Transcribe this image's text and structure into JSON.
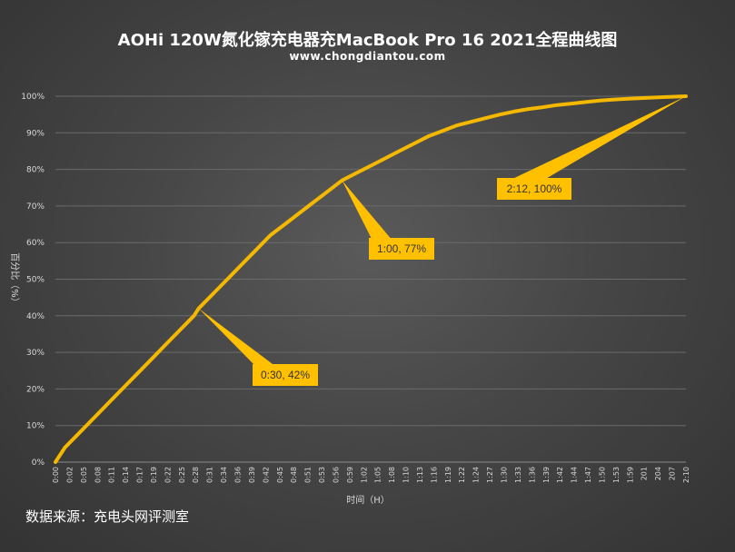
{
  "header": {
    "title": "AOHi 120W氮化镓充电器充MacBook Pro 16 2021全程曲线图",
    "subtitle": "www.chongdiantou.com"
  },
  "footer": {
    "source": "数据来源：充电头网评测室"
  },
  "colors": {
    "line": "#f5b800",
    "callout": "#ffc000",
    "grid": "#6a6a6a"
  },
  "chart_data": {
    "type": "line",
    "xlabel": "时间（H）",
    "ylabel": "百分比（%）",
    "ylim": [
      0,
      100
    ],
    "yticks": [
      "0%",
      "10%",
      "20%",
      "30%",
      "40%",
      "50%",
      "60%",
      "70%",
      "80%",
      "90%",
      "100%"
    ],
    "xticks": [
      "0:00",
      "0:02",
      "0:05",
      "0:08",
      "0:11",
      "0:14",
      "0:17",
      "0:19",
      "0:22",
      "0:25",
      "0:28",
      "0:31",
      "0:34",
      "0:36",
      "0:39",
      "0:42",
      "0:45",
      "0:48",
      "0:51",
      "0:53",
      "0:56",
      "0:59",
      "1:02",
      "1:05",
      "1:08",
      "1:10",
      "1:13",
      "1:16",
      "1:19",
      "1:22",
      "1:24",
      "1:27",
      "1:30",
      "1:33",
      "1:36",
      "1:39",
      "1:42",
      "1:44",
      "1:47",
      "1:50",
      "1:53",
      "1:59",
      "201",
      "204",
      "207",
      "2:10"
    ],
    "series": [
      {
        "x_minutes": [
          0,
          2,
          5,
          8,
          11,
          14,
          17,
          20,
          23,
          26,
          29,
          30,
          33,
          36,
          39,
          42,
          45,
          48,
          51,
          54,
          57,
          60,
          63,
          66,
          69,
          72,
          75,
          78,
          81,
          84,
          87,
          90,
          93,
          96,
          99,
          102,
          105,
          108,
          111,
          114,
          117,
          120,
          123,
          126,
          129,
          132
        ],
        "values": [
          0,
          4,
          8,
          12,
          16,
          20,
          24,
          28,
          32,
          36,
          40,
          42,
          46,
          50,
          54,
          58,
          62,
          65,
          68,
          71,
          74,
          77,
          79,
          81,
          83,
          85,
          87,
          89,
          90.5,
          92,
          93,
          94,
          95,
          95.8,
          96.5,
          97,
          97.6,
          98,
          98.4,
          98.8,
          99.1,
          99.3,
          99.5,
          99.7,
          99.85,
          100
        ]
      }
    ],
    "annotations": [
      {
        "label": "0:30, 42%",
        "x_minutes": 30,
        "y": 42
      },
      {
        "label": "1:00, 77%",
        "x_minutes": 60,
        "y": 77
      },
      {
        "label": "2:12, 100%",
        "x_minutes": 132,
        "y": 100
      }
    ]
  }
}
